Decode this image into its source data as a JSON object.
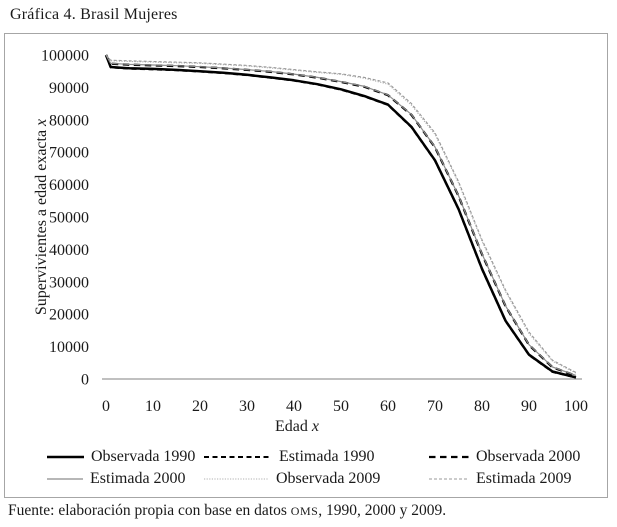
{
  "page": {
    "title": "Gráfica 4. Brasil Mujeres",
    "source_prefix": "Fuente: elaboración propia con base en datos ",
    "source_org": "OMS",
    "source_suffix": ", 1990, 2000 y 2009."
  },
  "chart_data": {
    "type": "line",
    "title": "Gráfica 4. Brasil Mujeres",
    "xlabel": {
      "text": "Edad ",
      "italic": "x"
    },
    "ylabel": {
      "text": "Supervivientes a edad exacta ",
      "italic": "x"
    },
    "xlim": [
      0,
      100
    ],
    "ylim": [
      0,
      100000
    ],
    "grid": false,
    "legend_position": "bottom",
    "axis_color": "#808080",
    "xticks": [
      0,
      10,
      20,
      30,
      40,
      50,
      60,
      70,
      80,
      90,
      100
    ],
    "yticks": [
      0,
      10000,
      20000,
      30000,
      40000,
      50000,
      60000,
      70000,
      80000,
      90000,
      100000
    ],
    "x": [
      0,
      1,
      5,
      10,
      15,
      20,
      25,
      30,
      35,
      40,
      45,
      50,
      55,
      60,
      65,
      70,
      75,
      80,
      85,
      90,
      95,
      100
    ],
    "series": [
      {
        "name": "Observada 1990",
        "color": "#000000",
        "width": 2.5,
        "dash": "",
        "values": [
          100000,
          96300,
          95900,
          95700,
          95400,
          95000,
          94500,
          93900,
          93100,
          92200,
          91000,
          89400,
          87300,
          84700,
          77800,
          67500,
          52500,
          34000,
          18000,
          7500,
          2300,
          500
        ]
      },
      {
        "name": "Estimada 1990",
        "color": "#000000",
        "width": 2.1,
        "dash": "5,3.5",
        "values": [
          100000,
          96200,
          95800,
          95600,
          95300,
          94900,
          94400,
          93800,
          93000,
          92100,
          90900,
          89300,
          87200,
          84600,
          77700,
          67400,
          52400,
          33900,
          17900,
          7400,
          2200,
          450
        ]
      },
      {
        "name": "Observada 2000",
        "color": "#000000",
        "width": 2.3,
        "dash": "6.5,4.5",
        "values": [
          100000,
          97300,
          97000,
          96800,
          96600,
          96300,
          95900,
          95400,
          94800,
          94000,
          93000,
          91700,
          90200,
          87600,
          81500,
          71500,
          56500,
          38500,
          22500,
          10500,
          3600,
          1000
        ]
      },
      {
        "name": "Estimada 2000",
        "color": "#8c8c8c",
        "width": 1.2,
        "dash": "",
        "values": [
          100000,
          97400,
          97100,
          96900,
          96700,
          96400,
          96000,
          95500,
          94900,
          94100,
          93100,
          91800,
          90300,
          87700,
          81600,
          71600,
          56600,
          38600,
          22600,
          10600,
          3700,
          1100
        ]
      },
      {
        "name": "Observada 2009",
        "color": "#b0b0b0",
        "width": 1.1,
        "dash": "1.2,1.4",
        "values": [
          100000,
          98200,
          98000,
          97800,
          97600,
          97400,
          97000,
          96600,
          96000,
          95300,
          94600,
          94000,
          92800,
          91000,
          84500,
          75500,
          60500,
          42500,
          27000,
          14000,
          5500,
          1800
        ]
      },
      {
        "name": "Estimada 2009",
        "color": "#999999",
        "width": 1.1,
        "dash": "3,2",
        "values": [
          100000,
          98400,
          98200,
          98000,
          97800,
          97600,
          97200,
          96800,
          96200,
          95500,
          94800,
          94200,
          93100,
          91400,
          85000,
          76000,
          61000,
          43000,
          27500,
          14500,
          5800,
          2000
        ]
      }
    ]
  }
}
